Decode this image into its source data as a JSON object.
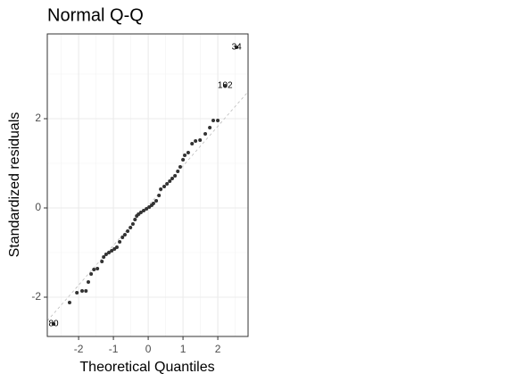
{
  "chart_data": {
    "type": "scatter",
    "title": "Normal Q-Q",
    "xlabel": "Theoretical Quantiles",
    "ylabel": "Standardized residuals",
    "x": [
      -2.72,
      -2.26,
      -2.05,
      -1.9,
      -1.79,
      -1.72,
      -1.64,
      -1.56,
      -1.46,
      -1.33,
      -1.28,
      -1.21,
      -1.13,
      -1.05,
      -0.97,
      -0.9,
      -0.82,
      -0.74,
      -0.67,
      -0.59,
      -0.51,
      -0.44,
      -0.38,
      -0.33,
      -0.28,
      -0.21,
      -0.13,
      -0.05,
      0.03,
      0.1,
      0.15,
      0.23,
      0.31,
      0.36,
      0.46,
      0.54,
      0.62,
      0.69,
      0.77,
      0.85,
      0.92,
      1.0,
      1.05,
      1.15,
      1.26,
      1.36,
      1.49,
      1.64,
      1.77,
      1.87,
      2.0,
      2.21,
      2.54
    ],
    "y": [
      -2.6,
      -2.12,
      -1.9,
      -1.86,
      -1.86,
      -1.66,
      -1.48,
      -1.38,
      -1.36,
      -1.2,
      -1.1,
      -1.04,
      -1.0,
      -0.96,
      -0.92,
      -0.88,
      -0.76,
      -0.66,
      -0.6,
      -0.52,
      -0.44,
      -0.36,
      -0.26,
      -0.18,
      -0.14,
      -0.1,
      -0.06,
      -0.02,
      0.02,
      0.06,
      0.1,
      0.16,
      0.28,
      0.42,
      0.48,
      0.54,
      0.6,
      0.66,
      0.72,
      0.82,
      0.92,
      1.08,
      1.18,
      1.24,
      1.44,
      1.5,
      1.52,
      1.66,
      1.8,
      1.96,
      1.96,
      2.74,
      3.6
    ],
    "labels": [
      "80",
      null,
      null,
      null,
      null,
      null,
      null,
      null,
      null,
      null,
      null,
      null,
      null,
      null,
      null,
      null,
      null,
      null,
      null,
      null,
      null,
      null,
      null,
      null,
      null,
      null,
      null,
      null,
      null,
      null,
      null,
      null,
      null,
      null,
      null,
      null,
      null,
      null,
      null,
      null,
      null,
      null,
      null,
      null,
      null,
      null,
      null,
      null,
      null,
      null,
      null,
      "102",
      "34"
    ],
    "color": "#333333",
    "reference_line": {
      "intercept": 0.05,
      "slope": 0.89,
      "color": "#bbbbbb"
    },
    "xlim": [
      -2.9,
      2.87
    ],
    "ylim": [
      -2.88,
      3.9
    ],
    "xticks": [
      -2,
      -1,
      0,
      1,
      2
    ],
    "yticks": [
      -2,
      0,
      2
    ],
    "grid": true,
    "minor_grid": true
  }
}
